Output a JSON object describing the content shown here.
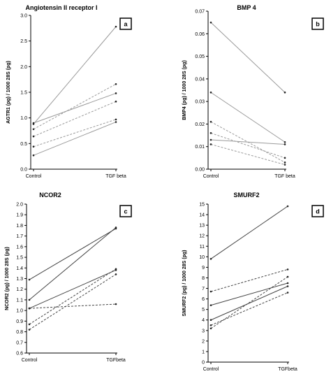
{
  "chart_data": [
    {
      "id": "a",
      "type": "line",
      "title": "Angiotensin II receptor I",
      "ylabel": "AGTR1 (pg) / 1000 28S (pg)",
      "panel_label": "a",
      "categories": [
        "Control",
        "TGF beta"
      ],
      "ylim": [
        0,
        3.0
      ],
      "yticks": [
        "0.0",
        "0.5",
        "1.0",
        "1.5",
        "2.0",
        "2.5",
        "3.0"
      ],
      "ytick_values": [
        0,
        0.5,
        1.0,
        1.5,
        2.0,
        2.5,
        3.0
      ],
      "series": [
        {
          "values": [
            0.88,
            2.78
          ],
          "style": "solid",
          "color": "#9a9a9a"
        },
        {
          "values": [
            0.78,
            1.66
          ],
          "style": "dashed",
          "color": "#9a9a9a"
        },
        {
          "values": [
            0.9,
            1.48
          ],
          "style": "solid",
          "color": "#9a9a9a"
        },
        {
          "values": [
            0.64,
            1.32
          ],
          "style": "dashed",
          "color": "#9a9a9a"
        },
        {
          "values": [
            0.44,
            0.97
          ],
          "style": "dashed",
          "color": "#9a9a9a"
        },
        {
          "values": [
            0.27,
            0.92
          ],
          "style": "solid",
          "color": "#9a9a9a"
        }
      ]
    },
    {
      "id": "b",
      "type": "line",
      "title": "BMP 4",
      "ylabel": "BMP4 (pg) / 1000 28S (pg)",
      "panel_label": "b",
      "categories": [
        "Control",
        "TGF beta"
      ],
      "ylim": [
        0,
        0.07
      ],
      "yticks": [
        "0.00",
        "0.01",
        "0.02",
        "0.03",
        "0.04",
        "0.05",
        "0.06",
        "0.07"
      ],
      "ytick_values": [
        0,
        0.01,
        0.02,
        0.03,
        0.04,
        0.05,
        0.06,
        0.07
      ],
      "series": [
        {
          "values": [
            0.065,
            0.034
          ],
          "style": "solid",
          "color": "#9a9a9a"
        },
        {
          "values": [
            0.034,
            0.012
          ],
          "style": "solid",
          "color": "#9a9a9a"
        },
        {
          "values": [
            0.021,
            0.003
          ],
          "style": "dashed",
          "color": "#9a9a9a"
        },
        {
          "values": [
            0.016,
            0.005
          ],
          "style": "dashed",
          "color": "#9a9a9a"
        },
        {
          "values": [
            0.013,
            0.011
          ],
          "style": "solid",
          "color": "#9a9a9a"
        },
        {
          "values": [
            0.011,
            0.002
          ],
          "style": "dashed",
          "color": "#9a9a9a"
        }
      ]
    },
    {
      "id": "c",
      "type": "line",
      "title": "NCOR2",
      "ylabel": "NCOR2 (pg) / 1000 28S (pg)",
      "panel_label": "c",
      "categories": [
        "Control",
        "TGFbeta"
      ],
      "ylim": [
        0.6,
        2.0
      ],
      "yticks": [
        "0.6",
        "0.7",
        "0.8",
        "0.9",
        "1.0",
        "1.1",
        "1.2",
        "1.3",
        "1.4",
        "1.5",
        "1.6",
        "1.7",
        "1.8",
        "1.9",
        "2.0"
      ],
      "ytick_values": [
        0.6,
        0.7,
        0.8,
        0.9,
        1.0,
        1.1,
        1.2,
        1.3,
        1.4,
        1.5,
        1.6,
        1.7,
        1.8,
        1.9,
        2.0
      ],
      "series": [
        {
          "values": [
            1.29,
            1.77
          ],
          "style": "solid",
          "color": "#444444"
        },
        {
          "values": [
            1.1,
            1.78
          ],
          "style": "solid",
          "color": "#444444"
        },
        {
          "values": [
            1.02,
            1.38
          ],
          "style": "solid",
          "color": "#444444"
        },
        {
          "values": [
            1.02,
            1.06
          ],
          "style": "dashed",
          "color": "#444444"
        },
        {
          "values": [
            0.87,
            1.39
          ],
          "style": "dashed",
          "color": "#444444"
        },
        {
          "values": [
            0.82,
            1.34
          ],
          "style": "dashed",
          "color": "#444444"
        }
      ]
    },
    {
      "id": "d",
      "type": "line",
      "title": "SMURF2",
      "ylabel": "SMURF2 (pg) / 1000 28S (pg)",
      "panel_label": "d",
      "categories": [
        "Control",
        "TGFbeta"
      ],
      "ylim": [
        0,
        15
      ],
      "yticks": [
        "0",
        "1",
        "2",
        "3",
        "4",
        "5",
        "6",
        "7",
        "8",
        "9",
        "10",
        "11",
        "12",
        "13",
        "14",
        "15"
      ],
      "ytick_values": [
        0,
        1,
        2,
        3,
        4,
        5,
        6,
        7,
        8,
        9,
        10,
        11,
        12,
        13,
        14,
        15
      ],
      "series": [
        {
          "values": [
            9.8,
            14.8
          ],
          "style": "solid",
          "color": "#444444"
        },
        {
          "values": [
            6.7,
            8.8
          ],
          "style": "dashed",
          "color": "#444444"
        },
        {
          "values": [
            5.4,
            7.5
          ],
          "style": "solid",
          "color": "#444444"
        },
        {
          "values": [
            4.0,
            7.2
          ],
          "style": "solid",
          "color": "#444444"
        },
        {
          "values": [
            3.5,
            6.6
          ],
          "style": "dashed",
          "color": "#444444"
        },
        {
          "values": [
            3.2,
            8.1
          ],
          "style": "dashed",
          "color": "#444444"
        }
      ]
    }
  ]
}
